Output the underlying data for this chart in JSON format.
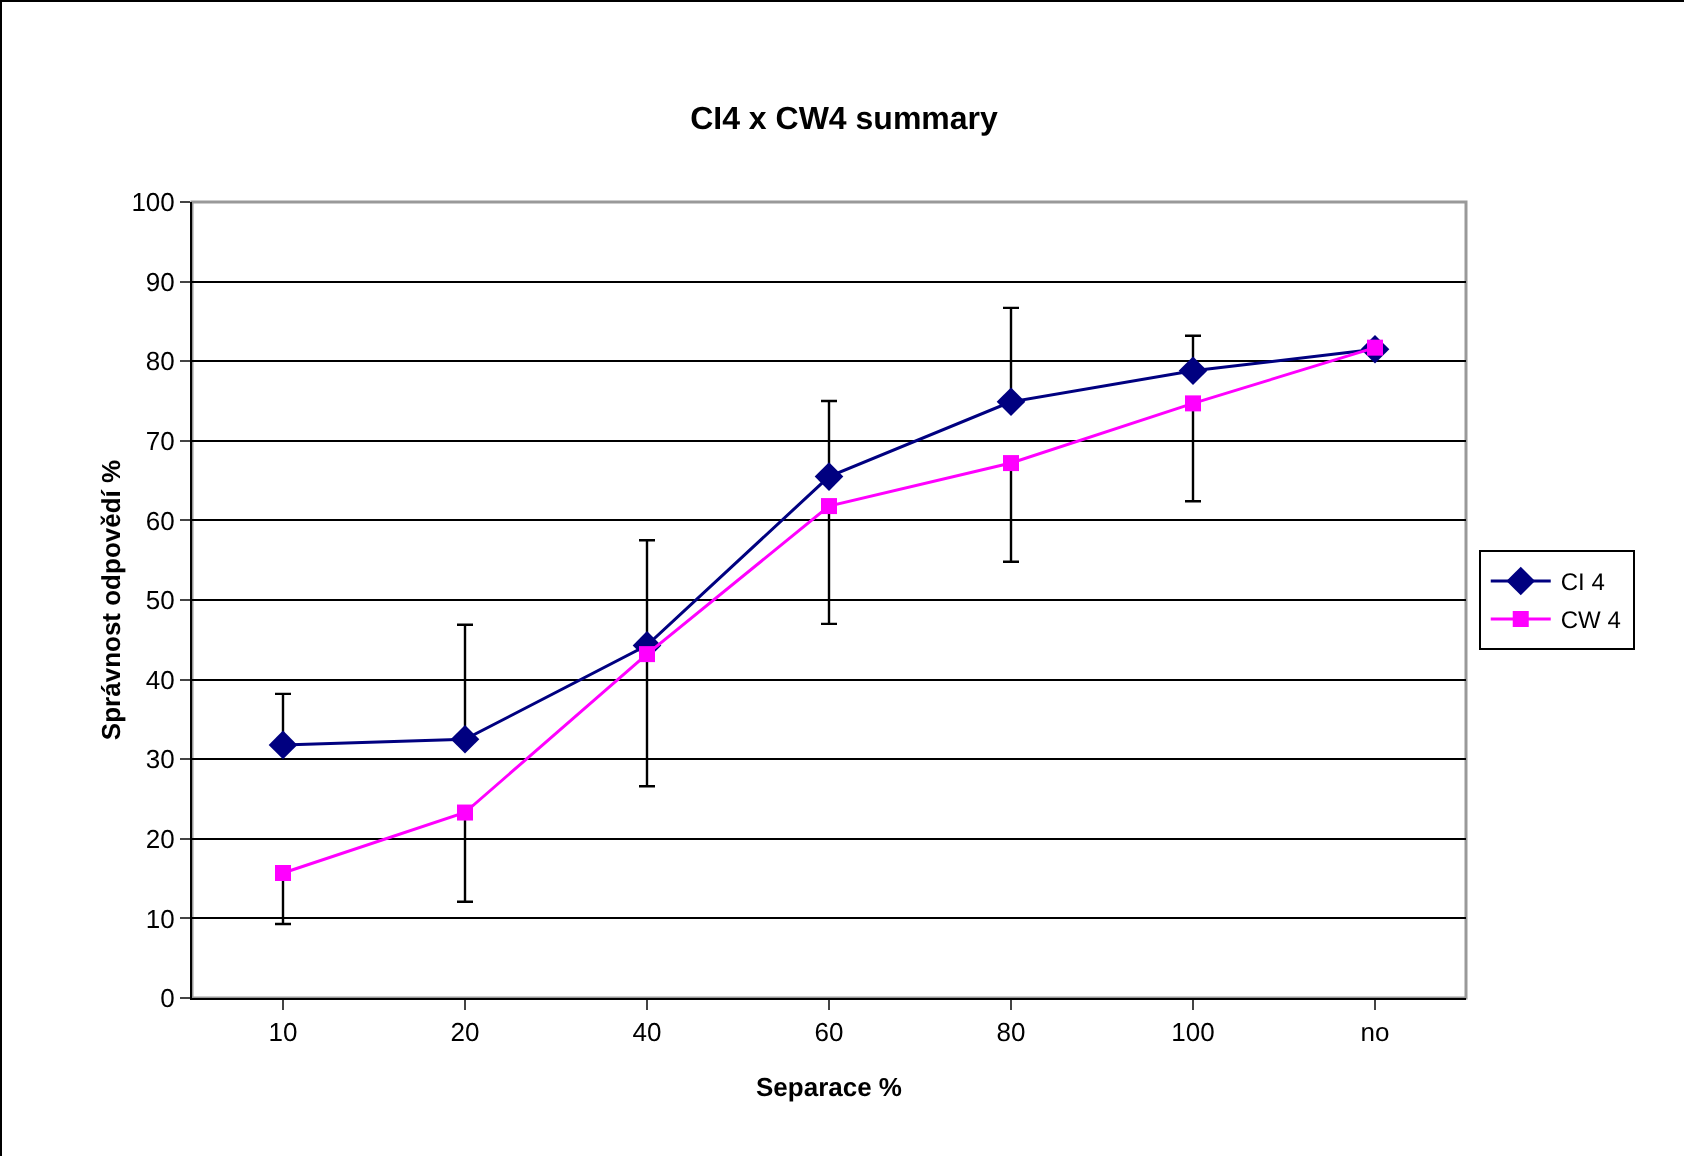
{
  "chart_data": {
    "type": "line",
    "title": "CI4 x CW4 summary",
    "xlabel": "Separace %",
    "ylabel": "Správnost odpovědí %",
    "categories": [
      "10",
      "20",
      "40",
      "60",
      "80",
      "100",
      "no"
    ],
    "series": [
      {
        "name": "CI 4",
        "color": "#000080",
        "marker": "diamond",
        "values": [
          31.8,
          32.5,
          44.3,
          65.5,
          74.9,
          78.8,
          81.5
        ],
        "errors": [
          [
            31.8,
            38.2
          ],
          [
            32.5,
            46.9
          ],
          [
            44.3,
            57.5
          ],
          [
            65.5,
            75.0
          ],
          [
            74.9,
            86.7
          ],
          [
            78.8,
            83.2
          ],
          null
        ]
      },
      {
        "name": "CW 4",
        "color": "#ff00ff",
        "marker": "square",
        "values": [
          15.7,
          23.3,
          43.2,
          61.8,
          67.2,
          74.7,
          81.7
        ],
        "errors": [
          [
            9.3,
            15.7
          ],
          [
            12.1,
            23.3
          ],
          [
            26.6,
            43.2
          ],
          [
            47.0,
            61.8
          ],
          [
            54.8,
            67.2
          ],
          [
            62.4,
            74.7
          ],
          null
        ]
      }
    ],
    "ylim": [
      0,
      100
    ],
    "yticks": [
      0,
      10,
      20,
      30,
      40,
      50,
      60,
      70,
      80,
      90,
      100
    ],
    "grid": "y",
    "legend": "right"
  }
}
